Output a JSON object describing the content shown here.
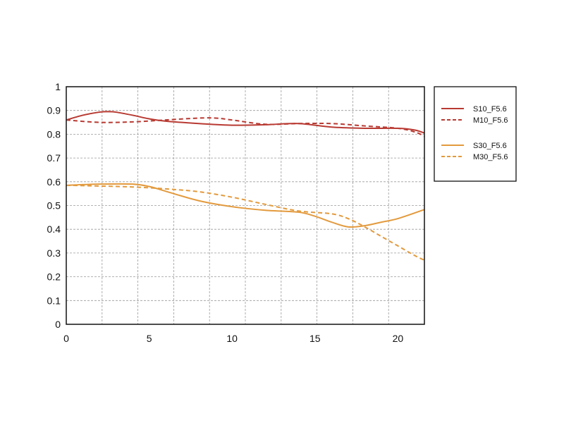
{
  "chart_data": {
    "type": "line",
    "title": "",
    "xlabel": "",
    "ylabel": "",
    "xlim": [
      0,
      21.6
    ],
    "ylim": [
      0,
      1
    ],
    "x_ticks": [
      0,
      5,
      10,
      15,
      20
    ],
    "y_ticks": [
      0,
      0.1,
      0.2,
      0.3,
      0.4,
      0.5,
      0.6,
      0.7,
      0.8,
      0.9,
      1
    ],
    "x_tick_labels": [
      "0",
      "5",
      "10",
      "15",
      "20"
    ],
    "y_tick_labels": [
      "0",
      "0.1",
      "0.2",
      "0.3",
      "0.4",
      "0.5",
      "0.6",
      "0.7",
      "0.8",
      "0.9",
      "1"
    ],
    "x_minor_step": 2.16,
    "grid": true,
    "legend_position": "right",
    "series": [
      {
        "name": "S10_F5.6",
        "color": "#b83a32",
        "dash": "solid",
        "x": [
          0,
          1,
          2,
          2.5,
          3,
          4,
          5,
          6,
          8,
          10,
          12,
          14,
          16,
          18,
          20,
          21,
          21.6
        ],
        "y": [
          0.86,
          0.88,
          0.893,
          0.895,
          0.893,
          0.88,
          0.865,
          0.855,
          0.845,
          0.838,
          0.84,
          0.845,
          0.83,
          0.825,
          0.825,
          0.818,
          0.805
        ]
      },
      {
        "name": "M10_F5.6",
        "color": "#b83a32",
        "dash": "dashed",
        "x": [
          0,
          2,
          4,
          6,
          8,
          9,
          10,
          12,
          14,
          16,
          18,
          20,
          21,
          21.6
        ],
        "y": [
          0.86,
          0.85,
          0.852,
          0.86,
          0.868,
          0.868,
          0.86,
          0.842,
          0.845,
          0.845,
          0.835,
          0.825,
          0.81,
          0.792
        ]
      },
      {
        "name": "S30_F5.6",
        "color": "#e39a3d",
        "dash": "solid",
        "x": [
          0,
          2,
          4,
          5,
          6,
          8,
          10,
          12,
          14,
          15,
          16,
          17,
          18,
          19,
          20,
          21.6
        ],
        "y": [
          0.585,
          0.59,
          0.59,
          0.58,
          0.56,
          0.52,
          0.495,
          0.48,
          0.472,
          0.455,
          0.43,
          0.41,
          0.415,
          0.43,
          0.445,
          0.483
        ]
      },
      {
        "name": "M30_F5.6",
        "color": "#e39a3d",
        "dash": "dashed",
        "x": [
          0,
          2,
          4,
          6,
          8,
          10,
          12,
          14,
          16,
          17,
          18,
          19,
          20,
          21,
          21.6
        ],
        "y": [
          0.585,
          0.582,
          0.578,
          0.57,
          0.558,
          0.535,
          0.505,
          0.477,
          0.465,
          0.445,
          0.41,
          0.37,
          0.33,
          0.29,
          0.27
        ]
      }
    ],
    "legend_groups": [
      [
        "S10_F5.6",
        "M10_F5.6"
      ],
      [
        "S30_F5.6",
        "M30_F5.6"
      ]
    ]
  }
}
